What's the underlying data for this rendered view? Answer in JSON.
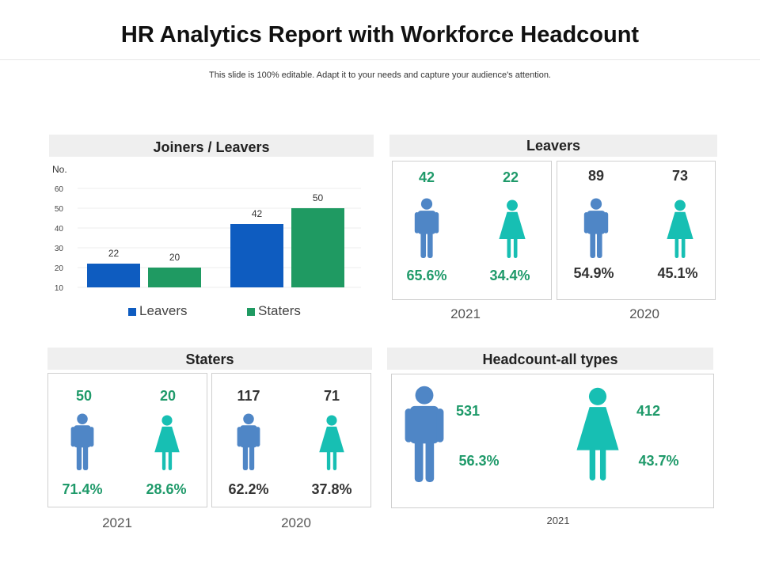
{
  "header": {
    "title": "HR Analytics Report with Workforce Headcount",
    "subtitle": "This slide is 100% editable. Adapt it to your needs and capture your audience's attention."
  },
  "colors": {
    "male": "#4f86c6",
    "female": "#17bfb3",
    "leavers_bar": "#0e5cc0",
    "staters_bar": "#1f9a62",
    "accent_green": "#1f9a6a"
  },
  "joiners_leavers": {
    "heading": "Joiners  / Leavers",
    "ylabel": "No.",
    "legend": {
      "leavers": "Leavers",
      "staters": "Staters"
    }
  },
  "chart_data": {
    "type": "bar",
    "title": "Joiners  / Leavers",
    "ylabel": "No.",
    "ylim": [
      10,
      60
    ],
    "yticks": [
      10,
      20,
      30,
      40,
      50,
      60
    ],
    "ytick_labels": [
      "10",
      "20",
      "30",
      "40",
      "50",
      "60"
    ],
    "categories": [
      "",
      ""
    ],
    "series": [
      {
        "name": "Leavers",
        "values": [
          22,
          42
        ],
        "labels": [
          "22",
          "42"
        ]
      },
      {
        "name": "Staters",
        "values": [
          20,
          50
        ],
        "labels": [
          "20",
          "50"
        ]
      }
    ],
    "legend": "bottom",
    "grid": true
  },
  "leavers": {
    "heading": "Leavers",
    "y2021": {
      "year": "2021",
      "male": "42",
      "female": "22",
      "male_pct": "65.6%",
      "female_pct": "34.4%"
    },
    "y2020": {
      "year": "2020",
      "male": "89",
      "female": "73",
      "male_pct": "54.9%",
      "female_pct": "45.1%"
    }
  },
  "staters": {
    "heading": "Staters",
    "y2021": {
      "year": "2021",
      "male": "50",
      "female": "20",
      "male_pct": "71.4%",
      "female_pct": "28.6%"
    },
    "y2020": {
      "year": "2020",
      "male": "117",
      "female": "71",
      "male_pct": "62.2%",
      "female_pct": "37.8%"
    }
  },
  "headcount": {
    "heading": "Headcount-all types",
    "year": "2021",
    "male": "531",
    "female": "412",
    "male_pct": "56.3%",
    "female_pct": "43.7%"
  },
  "icons": {
    "male": "male-person-icon",
    "female": "female-person-icon"
  }
}
